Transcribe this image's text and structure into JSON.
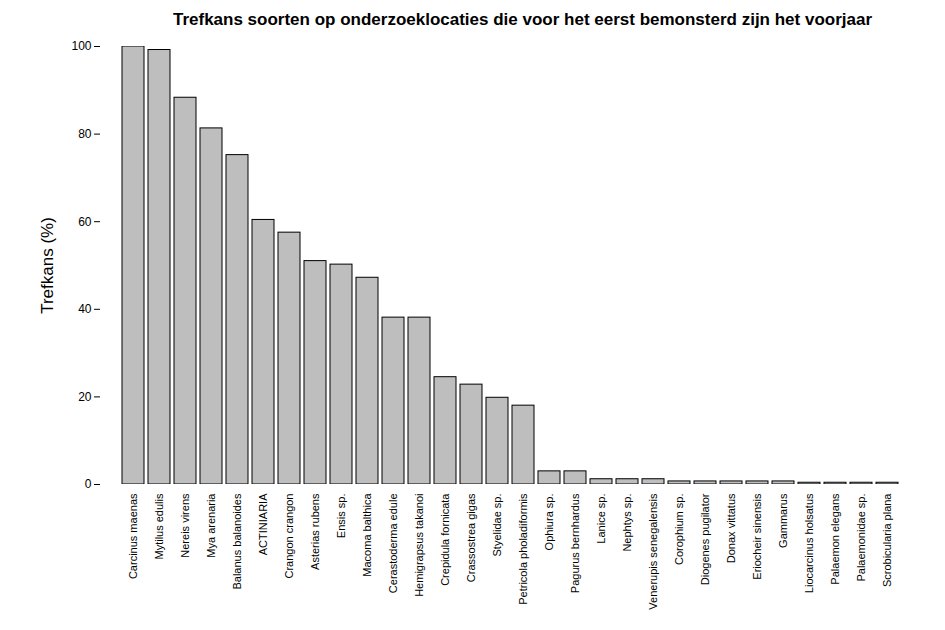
{
  "chart_data": {
    "type": "bar",
    "title": "Trefkans soorten op onderzoeklocaties die voor het eerst bemonsterd zijn het voorjaar",
    "y_label": "Trefkans (%)",
    "categories": [
      "Carcinus maenas",
      "Mytilus edulis",
      "Nereis virens",
      "Mya arenaria",
      "Balanus balanoides",
      "ACTINIARIA",
      "Crangon crangon",
      "Asterias rubens",
      "Ensis sp.",
      "Macoma balthica",
      "Cerastoderma edule",
      "Hemigrapsus takanoi",
      "Crepidula fornicata",
      "Crassostrea gigas",
      "Styelidae sp.",
      "Petricola pholadiformis",
      "Ophiura sp.",
      "Pagurus bernhardus",
      "Lanice sp.",
      "Nephtys sp.",
      "Venerupis senegalensis",
      "Corophium sp.",
      "Diogenes pugilator",
      "Donax vittatus",
      "Eriocheir sinensis",
      "Gammarus",
      "Liocarcinus holsatus",
      "Palaemon elegans",
      "Palaemonidae sp.",
      "Scrobicularia plana"
    ],
    "values": [
      100,
      99.2,
      88.3,
      81.3,
      75.2,
      60.4,
      57.5,
      51,
      50.2,
      47.2,
      38.1,
      38.1,
      24.5,
      22.8,
      19.8,
      18,
      3,
      3,
      1.2,
      1.2,
      1.2,
      0.7,
      0.7,
      0.7,
      0.7,
      0.7,
      0.4,
      0.4,
      0.4,
      0.4
    ],
    "color": "#bebebe",
    "ylim": [
      0,
      100
    ],
    "yticks": [
      0,
      20,
      40,
      60,
      80,
      100
    ],
    "grid": false
  }
}
